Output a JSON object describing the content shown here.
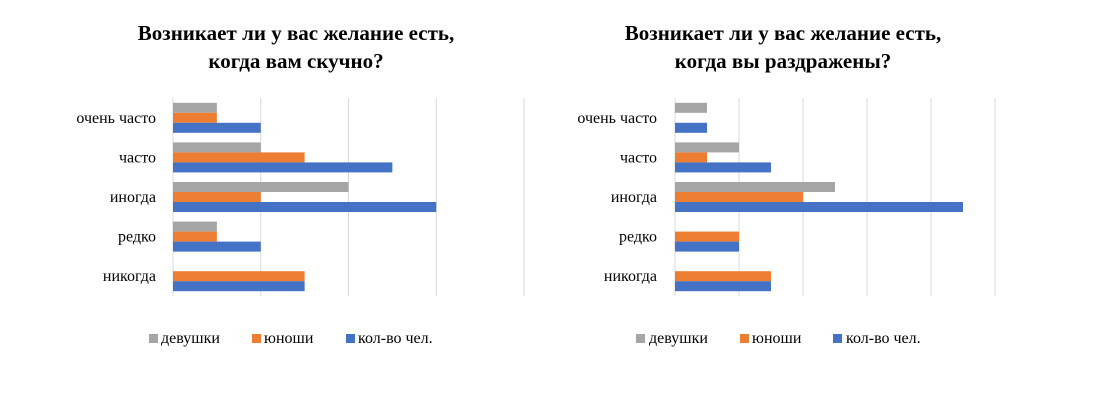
{
  "chart_data": [
    {
      "type": "bar",
      "orientation": "horizontal",
      "title": "Возникает ли у вас желание есть, когда вам скучно?",
      "title_lines": [
        "Возникает ли у вас желание есть,",
        "когда вам скучно?"
      ],
      "categories": [
        "очень часто",
        "часто",
        "иногда",
        "редко",
        "никогда"
      ],
      "series": [
        {
          "name": "девушки",
          "color": "#a5a5a5",
          "values": [
            1,
            2,
            4,
            1,
            0
          ]
        },
        {
          "name": "юноши",
          "color": "#ed7d31",
          "values": [
            1,
            3,
            2,
            1,
            3
          ]
        },
        {
          "name": "кол-во чел.",
          "color": "#4472c4",
          "values": [
            2,
            5,
            6,
            2,
            3
          ]
        }
      ],
      "xlim": [
        0,
        8
      ],
      "gridline_step": 2,
      "grid": true,
      "legend_position": "bottom"
    },
    {
      "type": "bar",
      "orientation": "horizontal",
      "title": "Возникает ли у вас желание есть, когда вы раздражены?",
      "title_lines": [
        "Возникает ли у вас желание есть,",
        "когда вы раздражены?"
      ],
      "categories": [
        "очень часто",
        "часто",
        "иногда",
        "редко",
        "никогда"
      ],
      "series": [
        {
          "name": "девушки",
          "color": "#a5a5a5",
          "values": [
            1,
            2,
            5,
            0,
            0
          ]
        },
        {
          "name": "юноши",
          "color": "#ed7d31",
          "values": [
            0,
            1,
            4,
            2,
            3
          ]
        },
        {
          "name": "кол-во чел.",
          "color": "#4472c4",
          "values": [
            1,
            3,
            9,
            2,
            3
          ]
        }
      ],
      "xlim": [
        0,
        10
      ],
      "gridline_step": 2,
      "grid": true,
      "legend_position": "bottom"
    }
  ]
}
